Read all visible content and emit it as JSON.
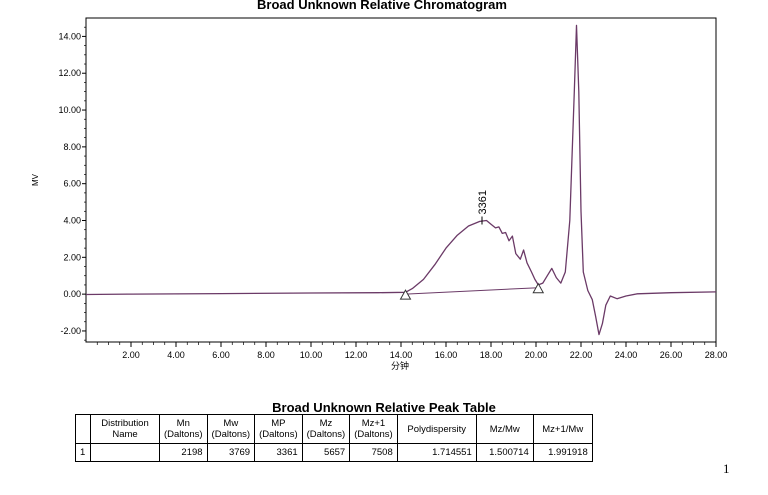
{
  "chart_data": {
    "type": "line",
    "title": "Broad Unknown Relative Chromatogram",
    "xlabel": "分钟",
    "ylabel": "MV",
    "xlim": [
      0,
      28
    ],
    "ylim": [
      -2.6,
      15.0
    ],
    "x_ticks": [
      "2.00",
      "4.00",
      "6.00",
      "8.00",
      "10.00",
      "12.00",
      "14.00",
      "16.00",
      "18.00",
      "20.00",
      "22.00",
      "24.00",
      "26.00",
      "28.00"
    ],
    "y_ticks": [
      "-2.00",
      "0.00",
      "2.00",
      "4.00",
      "6.00",
      "8.00",
      "10.00",
      "12.00",
      "14.00"
    ],
    "series": [
      {
        "x": [
          0.0,
          2.0,
          6.0,
          10.0,
          13.0,
          14.2,
          14.5,
          15.0,
          15.5,
          16.0,
          16.5,
          17.0,
          17.5,
          17.8,
          18.0,
          18.2,
          18.35,
          18.5,
          18.65,
          18.8,
          18.95,
          19.1,
          19.3,
          19.45,
          19.6,
          19.8,
          19.95,
          20.1,
          20.3,
          20.5,
          20.7,
          20.9,
          21.1,
          21.3,
          21.5,
          21.7,
          21.8,
          21.9,
          22.0,
          22.1,
          22.3,
          22.5,
          22.65,
          22.8,
          22.95,
          23.1,
          23.3,
          23.6,
          24.0,
          24.5,
          26.0,
          28.0
        ],
        "y": [
          -0.02,
          0.0,
          0.03,
          0.06,
          0.08,
          0.1,
          0.3,
          0.8,
          1.6,
          2.5,
          3.2,
          3.7,
          3.95,
          4.0,
          3.8,
          3.6,
          3.65,
          3.3,
          3.35,
          2.9,
          3.15,
          2.2,
          1.9,
          2.4,
          1.7,
          1.2,
          0.8,
          0.5,
          0.6,
          1.0,
          1.4,
          0.9,
          0.6,
          1.2,
          4.0,
          11.0,
          14.6,
          11.0,
          4.5,
          1.2,
          0.2,
          -0.3,
          -1.2,
          -2.2,
          -1.6,
          -0.6,
          -0.1,
          -0.25,
          -0.1,
          0.02,
          0.08,
          0.12
        ]
      }
    ],
    "peak_label": {
      "text": "3361",
      "x": 17.6,
      "y": 4.0
    },
    "baseline_markers": [
      {
        "x": 14.2,
        "y": 0.0
      },
      {
        "x": 20.1,
        "y": 0.35
      }
    ],
    "line_color": "#6b3a67"
  },
  "peak_table": {
    "title": "Broad Unknown Relative Peak Table",
    "headers": [
      [
        "",
        ""
      ],
      [
        "Distribution",
        "Name"
      ],
      [
        "Mn",
        "(Daltons)"
      ],
      [
        "Mw",
        "(Daltons)"
      ],
      [
        "MP",
        "(Daltons)"
      ],
      [
        "Mz",
        "(Daltons)"
      ],
      [
        "Mz+1",
        "(Daltons)"
      ],
      [
        "Polydispersity",
        ""
      ],
      [
        "Mz/Mw",
        ""
      ],
      [
        "Mz+1/Mw",
        ""
      ]
    ],
    "rows": [
      [
        "1",
        "",
        "2198",
        "3769",
        "3361",
        "5657",
        "7508",
        "1.714551",
        "1.500714",
        "1.991918"
      ]
    ]
  },
  "page_number": "1"
}
